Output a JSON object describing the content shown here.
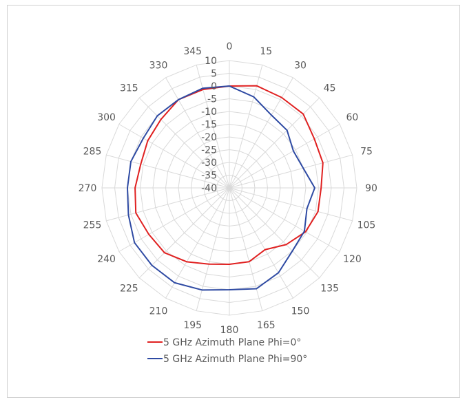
{
  "chart_data": {
    "type": "radar",
    "title": "",
    "angles": [
      0,
      15,
      30,
      45,
      60,
      75,
      90,
      105,
      120,
      135,
      150,
      165,
      180,
      195,
      210,
      225,
      240,
      255,
      270,
      285,
      300,
      315,
      330,
      345
    ],
    "angle_labels": [
      "0",
      "15",
      "30",
      "45",
      "60",
      "75",
      "90",
      "105",
      "120",
      "135",
      "150",
      "165",
      "180",
      "195",
      "210",
      "225",
      "240",
      "255",
      "270",
      "285",
      "300",
      "315",
      "330",
      "345"
    ],
    "radial_ticks": [
      10,
      5,
      0,
      -5,
      -10,
      -15,
      -20,
      -25,
      -30,
      -35,
      -40
    ],
    "radial_tick_labels": [
      "10",
      "5",
      "0",
      "-5",
      "-10",
      "-15",
      "-20",
      "-25",
      "-30",
      "-35",
      "-40"
    ],
    "rlim": [
      -40,
      10
    ],
    "grid": true,
    "legend_position": "bottom",
    "series": [
      {
        "name": "5 GHz Azimuth Plane Phi=0°",
        "color": "#e02020",
        "values": [
          0,
          1.5,
          1,
          1,
          -1.5,
          -2,
          -4,
          -4,
          -5.5,
          -8.5,
          -12,
          -10,
          -10,
          -9,
          -6.5,
          -4,
          -3.5,
          -2,
          -3,
          -4,
          -3,
          -2,
          0,
          0
        ]
      },
      {
        "name": "5 GHz Azimuth Plane Phi=90°",
        "color": "#2e4aa3",
        "values": [
          0,
          -3,
          -7,
          -8,
          -11,
          -10,
          -6.5,
          -8.5,
          -6,
          -5,
          -1.5,
          1,
          0,
          1.5,
          3,
          3,
          3,
          1,
          0,
          0,
          -1,
          0,
          0,
          0.5
        ]
      }
    ]
  }
}
